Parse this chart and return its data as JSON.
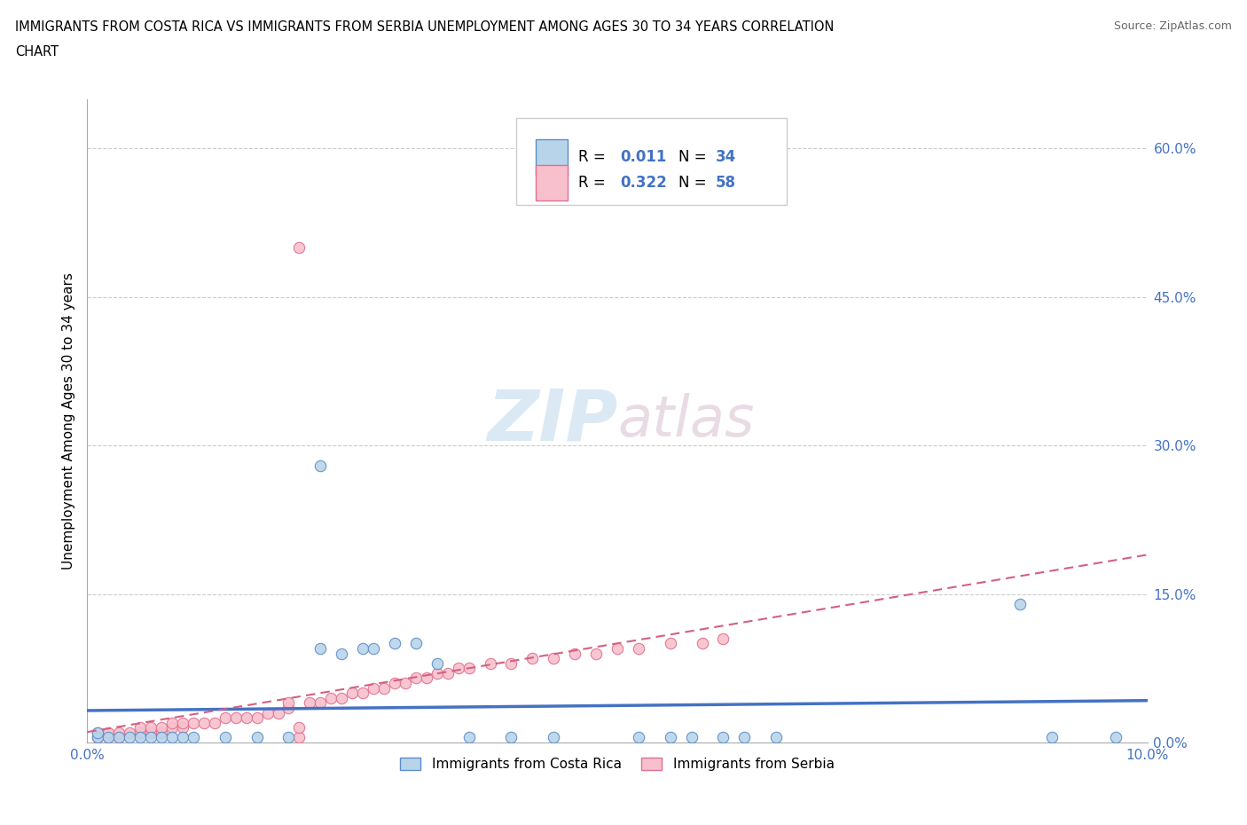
{
  "title_line1": "IMMIGRANTS FROM COSTA RICA VS IMMIGRANTS FROM SERBIA UNEMPLOYMENT AMONG AGES 30 TO 34 YEARS CORRELATION",
  "title_line2": "CHART",
  "source": "Source: ZipAtlas.com",
  "ylabel": "Unemployment Among Ages 30 to 34 years",
  "xlim": [
    0.0,
    0.1
  ],
  "ylim": [
    0.0,
    0.65
  ],
  "xticks": [
    0.0,
    0.02,
    0.04,
    0.06,
    0.08,
    0.1
  ],
  "yticks": [
    0.0,
    0.15,
    0.3,
    0.45,
    0.6
  ],
  "ytick_labels": [
    "0.0%",
    "15.0%",
    "30.0%",
    "45.0%",
    "60.0%"
  ],
  "color_costa_rica_fill": "#b8d4ea",
  "color_costa_rica_edge": "#5b8dc8",
  "color_serbia_fill": "#f7c0cc",
  "color_serbia_edge": "#e07090",
  "color_line_costa_rica": "#4472c4",
  "color_line_serbia": "#d46080",
  "costa_rica_x": [
    0.001,
    0.001,
    0.002,
    0.003,
    0.004,
    0.005,
    0.006,
    0.007,
    0.008,
    0.009,
    0.01,
    0.013,
    0.016,
    0.019,
    0.022,
    0.022,
    0.024,
    0.026,
    0.027,
    0.029,
    0.031,
    0.033,
    0.036,
    0.04,
    0.044,
    0.052,
    0.055,
    0.057,
    0.06,
    0.062,
    0.065,
    0.088,
    0.091,
    0.097
  ],
  "costa_rica_y": [
    0.005,
    0.01,
    0.005,
    0.005,
    0.005,
    0.005,
    0.005,
    0.005,
    0.005,
    0.005,
    0.005,
    0.005,
    0.005,
    0.005,
    0.28,
    0.095,
    0.09,
    0.095,
    0.095,
    0.1,
    0.1,
    0.08,
    0.005,
    0.005,
    0.005,
    0.005,
    0.005,
    0.005,
    0.005,
    0.005,
    0.005,
    0.14,
    0.005,
    0.005
  ],
  "serbia_x": [
    0.001,
    0.001,
    0.002,
    0.002,
    0.003,
    0.003,
    0.004,
    0.005,
    0.005,
    0.006,
    0.006,
    0.007,
    0.007,
    0.008,
    0.008,
    0.009,
    0.009,
    0.01,
    0.011,
    0.012,
    0.013,
    0.014,
    0.015,
    0.016,
    0.017,
    0.018,
    0.019,
    0.019,
    0.02,
    0.021,
    0.022,
    0.023,
    0.024,
    0.025,
    0.026,
    0.027,
    0.028,
    0.029,
    0.03,
    0.031,
    0.032,
    0.033,
    0.034,
    0.035,
    0.036,
    0.038,
    0.04,
    0.042,
    0.044,
    0.046,
    0.048,
    0.05,
    0.052,
    0.055,
    0.058,
    0.06,
    0.02,
    0.02
  ],
  "serbia_y": [
    0.005,
    0.01,
    0.005,
    0.01,
    0.005,
    0.01,
    0.01,
    0.01,
    0.015,
    0.01,
    0.015,
    0.01,
    0.015,
    0.015,
    0.02,
    0.015,
    0.02,
    0.02,
    0.02,
    0.02,
    0.025,
    0.025,
    0.025,
    0.025,
    0.03,
    0.03,
    0.035,
    0.04,
    0.5,
    0.04,
    0.04,
    0.045,
    0.045,
    0.05,
    0.05,
    0.055,
    0.055,
    0.06,
    0.06,
    0.065,
    0.065,
    0.07,
    0.07,
    0.075,
    0.075,
    0.08,
    0.08,
    0.085,
    0.085,
    0.09,
    0.09,
    0.095,
    0.095,
    0.1,
    0.1,
    0.105,
    0.005,
    0.015
  ]
}
